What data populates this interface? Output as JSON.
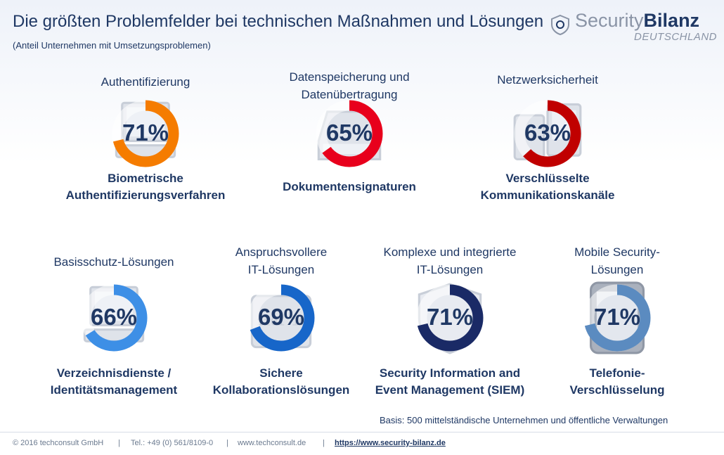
{
  "header": {
    "title": "Die größten Problemfelder bei technischen Maßnahmen und Lösungen",
    "subtitle": "(Anteil Unternehmen mit Umsetzungsproblemen)"
  },
  "logo": {
    "brand_light": "Security",
    "brand_bold": "Bilanz",
    "country": "DEUTSCHLAND"
  },
  "colors": {
    "title": "#1f3864",
    "ring_track": "#ffffff"
  },
  "chart_data": {
    "type": "pie",
    "items": [
      {
        "category_lines": [
          "Authentifizierung"
        ],
        "desc_lines": [
          "Biometrische",
          "Authentifizierungsverfahren"
        ],
        "value": 71,
        "label": "71%",
        "color": "#f57c00",
        "icon": "laptop-icon"
      },
      {
        "category_lines": [
          "Datenspeicherung und",
          "Datenübertragung"
        ],
        "desc_lines": [
          "Dokumentensignaturen"
        ],
        "value": 65,
        "label": "65%",
        "color": "#e8001c",
        "icon": "hard-drive-icon"
      },
      {
        "category_lines": [
          "Netzwerksicherheit"
        ],
        "desc_lines": [
          "Verschlüsselte",
          "Kommunikationskanäle"
        ],
        "value": 63,
        "label": "63%",
        "color": "#c00000",
        "icon": "network-devices-icon"
      },
      {
        "category_lines": [
          "Basisschutz-Lösungen"
        ],
        "desc_lines": [
          "Verzeichnisdienste /",
          "Identitätsmanagement"
        ],
        "value": 66,
        "label": "66%",
        "color": "#3d8fe6",
        "icon": "computer-icon"
      },
      {
        "category_lines": [
          "Anspruchsvollere",
          "IT-Lösungen"
        ],
        "desc_lines": [
          "Sichere",
          "Kollaborationslösungen"
        ],
        "value": 69,
        "label": "69%",
        "color": "#1766c9",
        "icon": "binary-lock-icon"
      },
      {
        "category_lines": [
          "Komplexe und integrierte",
          "IT-Lösungen"
        ],
        "desc_lines": [
          "Security Information and",
          "Event Management (SIEM)"
        ],
        "value": 71,
        "label": "71%",
        "color": "#1a2a66",
        "icon": "shield-icon"
      },
      {
        "category_lines": [
          "Mobile Security-",
          "Lösungen"
        ],
        "desc_lines": [
          "Telefonie-",
          "Verschlüsselung"
        ],
        "value": 71,
        "label": "71%",
        "color": "#5b8bc0",
        "icon": "smartphone-icon"
      }
    ]
  },
  "basis": "Basis: 500 mittelständische Unternehmen und öffentliche Verwaltungen",
  "footer": {
    "copyright": "© 2016 techconsult GmbH",
    "sep1": "|",
    "phone": "Tel.: +49 (0) 561/8109-0",
    "sep2": "|",
    "website": "www.techconsult.de",
    "sep3": "|",
    "link": "https://www.security-bilanz.de"
  }
}
